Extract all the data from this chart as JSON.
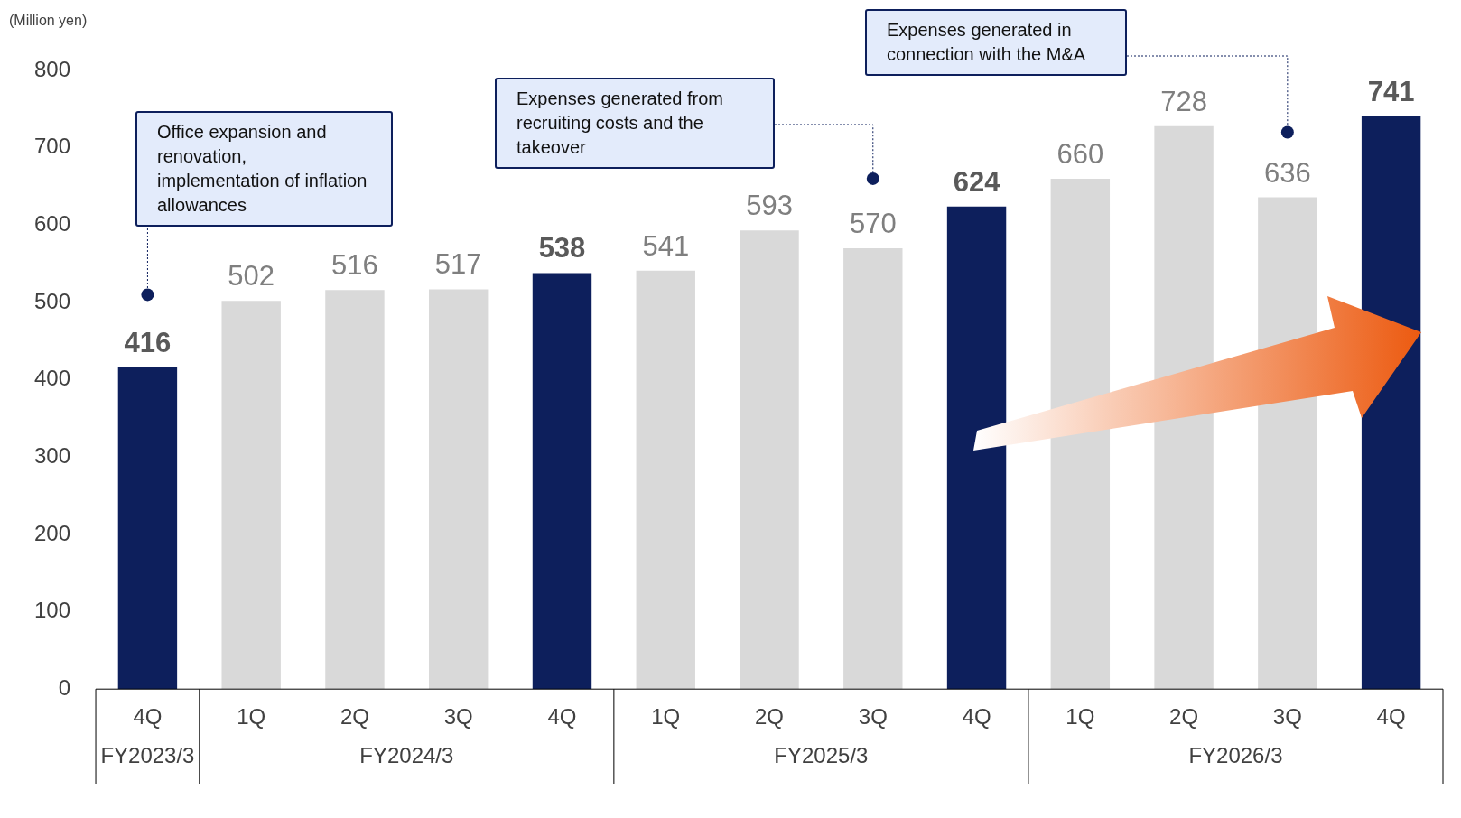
{
  "chart_data": {
    "type": "bar",
    "ylabel": "(Million yen)",
    "categories": [
      "4Q",
      "1Q",
      "2Q",
      "3Q",
      "4Q",
      "1Q",
      "2Q",
      "3Q",
      "4Q",
      "1Q",
      "2Q",
      "3Q",
      "4Q"
    ],
    "values": [
      416,
      502,
      516,
      517,
      538,
      541,
      593,
      570,
      624,
      660,
      728,
      636,
      741
    ],
    "colors": [
      "#0d1f5c",
      "#d9d9d9",
      "#d9d9d9",
      "#d9d9d9",
      "#0d1f5c",
      "#d9d9d9",
      "#d9d9d9",
      "#d9d9d9",
      "#0d1f5c",
      "#d9d9d9",
      "#d9d9d9",
      "#d9d9d9",
      "#0d1f5c"
    ],
    "ylim": [
      0,
      800
    ],
    "yticks": [
      0,
      100,
      200,
      300,
      400,
      500,
      600,
      700,
      800
    ],
    "grid": false,
    "legend": false,
    "data_labels": true,
    "annotations": [
      "Office expansion and renovation, implementation of inflation allowances",
      "Expenses generated from recruiting costs and the takeover",
      "Expenses generated in connection with the M&A",
      "FY2023/3",
      "FY2024/3",
      "FY2025/3",
      "FY2026/3"
    ]
  }
}
